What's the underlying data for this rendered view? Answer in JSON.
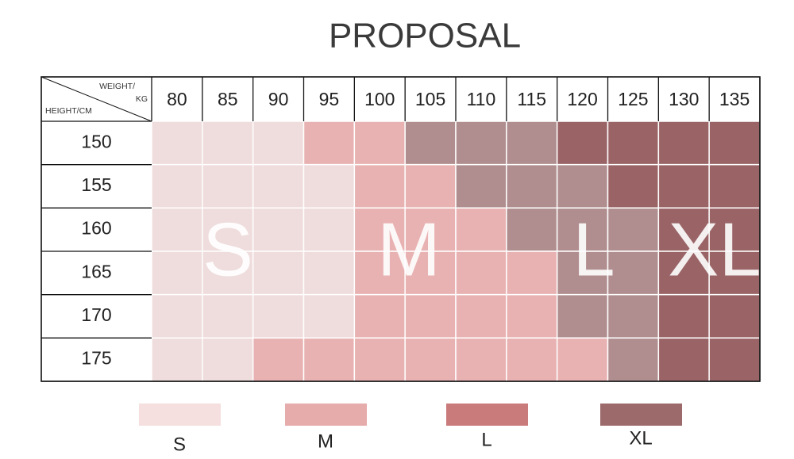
{
  "header": {
    "title": "PROPOSAL"
  },
  "table": {
    "corner": {
      "weight_line1": "WEIGHT/",
      "weight_line2": "KG",
      "height": "HEIGHT/CM"
    },
    "weights": [
      80,
      85,
      90,
      95,
      100,
      105,
      110,
      115,
      120,
      125,
      130,
      135
    ],
    "heights": [
      150,
      155,
      160,
      165,
      170,
      175
    ],
    "cells": [
      [
        "S",
        "S",
        "S",
        "M",
        "M",
        "L",
        "L",
        "L",
        "XL",
        "XL",
        "XL",
        "XL"
      ],
      [
        "S",
        "S",
        "S",
        "S",
        "M",
        "M",
        "L",
        "L",
        "L",
        "XL",
        "XL",
        "XL"
      ],
      [
        "S",
        "S",
        "S",
        "S",
        "M",
        "M",
        "M",
        "L",
        "L",
        "L",
        "XL",
        "XL"
      ],
      [
        "S",
        "S",
        "S",
        "S",
        "M",
        "M",
        "M",
        "M",
        "L",
        "L",
        "XL",
        "XL"
      ],
      [
        "S",
        "S",
        "S",
        "S",
        "M",
        "M",
        "M",
        "M",
        "L",
        "L",
        "XL",
        "XL"
      ],
      [
        "S",
        "S",
        "M",
        "M",
        "M",
        "M",
        "M",
        "M",
        "M",
        "L",
        "XL",
        "XL"
      ]
    ],
    "overlays": [
      "S",
      "M",
      "L",
      "XL"
    ]
  },
  "legend": [
    {
      "label": "S",
      "color": "#f5dfdf",
      "table_color": "#efdcdc"
    },
    {
      "label": "M",
      "color": "#e6abab",
      "table_color": "#e9b2b2"
    },
    {
      "label": "L",
      "color": "#c97a7a",
      "table_color": "#b08e8f"
    },
    {
      "label": "XL",
      "color": "#9d6a6c",
      "table_color": "#9a6467"
    }
  ]
}
